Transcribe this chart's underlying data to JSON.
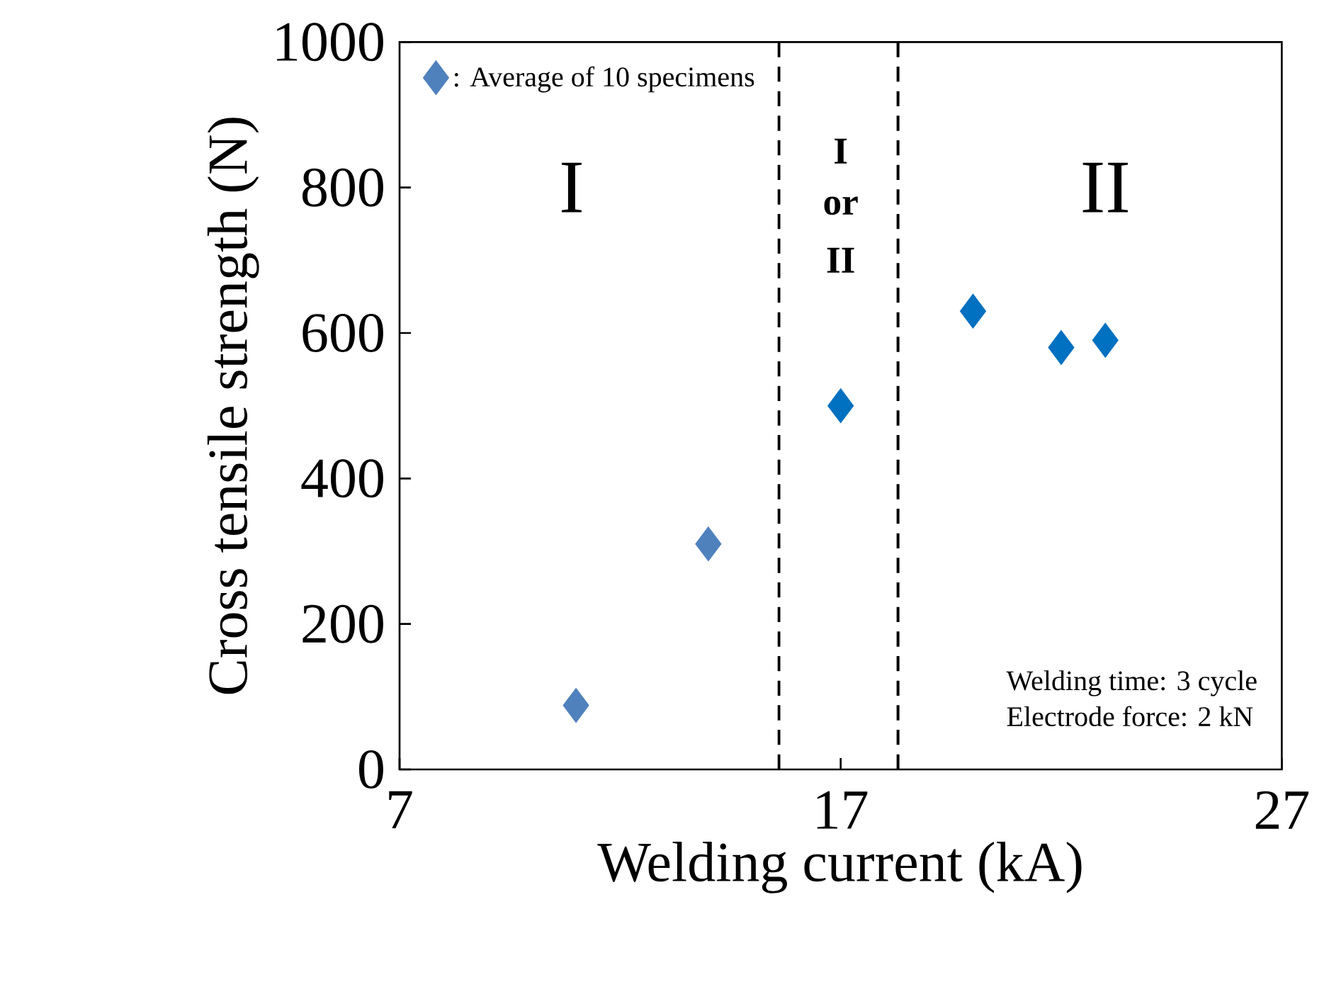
{
  "chart_data": {
    "type": "scatter",
    "xlabel": "Welding current (kA)",
    "ylabel": "Cross tensile strength (N)",
    "xlim": [
      7,
      27
    ],
    "xticks": [
      7,
      17,
      27
    ],
    "ylim": [
      0,
      1000
    ],
    "yticks": [
      0,
      200,
      400,
      600,
      800,
      1000
    ],
    "series": [
      {
        "name": ": Average of 10 specimens",
        "x": [
          11,
          14,
          17,
          20,
          22,
          23
        ],
        "values": [
          88,
          310,
          500,
          630,
          580,
          590
        ],
        "colors": [
          "#4f81bd",
          "#4f81bd",
          "#0070c0",
          "#0070c0",
          "#0070c0",
          "#0070c0"
        ]
      }
    ],
    "marker": "diamond",
    "legend": "top left",
    "grid": false,
    "ref_lines": [
      {
        "axis": "x",
        "value": 15.6,
        "line_style": "dashed",
        "color": "#000000"
      },
      {
        "axis": "x",
        "value": 18.3,
        "line_style": "dashed",
        "color": "#000000"
      }
    ],
    "annotations": [
      "I",
      "I",
      "or",
      "II",
      "II",
      "Welding time: 3 cycle",
      "Electrode force: 2 kN"
    ]
  }
}
